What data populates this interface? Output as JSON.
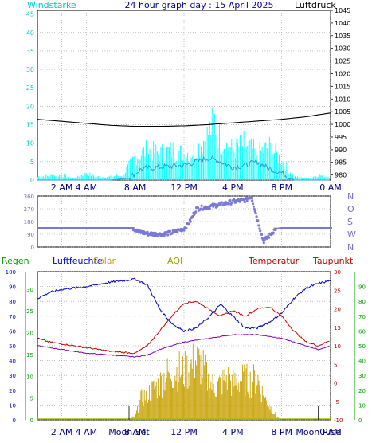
{
  "header": {
    "left_label": "Windstärke",
    "title": "24 hour graph day : 15 April 2025",
    "right_label": "Luftdruck"
  },
  "colors": {
    "wind": "#00c8c8",
    "gust": "#00ffff",
    "pressure": "#000000",
    "direction": "#7a7ad6",
    "rain": "#00a000",
    "humidity": "#0000c8",
    "solar": "#c8a000",
    "temperature": "#c00000",
    "dewpoint": "#8000c0",
    "compass": "#7070c0"
  },
  "chart_data": [
    {
      "id": "wind-pressure",
      "type": "line",
      "x_tick_labels": [
        "2 AM",
        "4 AM",
        "8 AM",
        "12 PM",
        "4 PM",
        "8 PM",
        "0 AM"
      ],
      "x_tick_hours": [
        2,
        4,
        8,
        12,
        16,
        20,
        24
      ],
      "x_range_hours": [
        0,
        24
      ],
      "left_axis": {
        "label": "Windstärke",
        "range": [
          0,
          46
        ],
        "ticks": [
          0,
          5,
          10,
          15,
          20,
          25,
          30,
          35,
          40,
          45
        ]
      },
      "right_axis": {
        "label": "Luftdruck",
        "range": [
          978,
          1045
        ],
        "ticks": [
          980,
          985,
          990,
          995,
          1000,
          1005,
          1010,
          1015,
          1020,
          1025,
          1030,
          1035,
          1040,
          1045
        ]
      },
      "grid": true,
      "pressure": {
        "hours": [
          0,
          2,
          4,
          6,
          8,
          10,
          12,
          14,
          16,
          18,
          20,
          22,
          24
        ],
        "values": [
          1002,
          1001.2,
          1000.4,
          999.6,
          999.2,
          999.2,
          999.4,
          999.9,
          1000.6,
          1001.3,
          1002,
          1003,
          1004.5
        ]
      },
      "wind": {
        "hours": [
          0,
          6,
          7.5,
          8.5,
          10,
          12,
          13,
          14,
          15,
          16,
          17,
          18,
          19,
          20,
          21,
          24
        ],
        "values": [
          0,
          0,
          0.5,
          3,
          3.5,
          4,
          5,
          6,
          5,
          3.5,
          4,
          5,
          3,
          2,
          0,
          0
        ]
      },
      "gust": {
        "hours": [
          0,
          2,
          3,
          4,
          5,
          6,
          7,
          8,
          9,
          10,
          11,
          12,
          13,
          14,
          14.5,
          15,
          16,
          17,
          18,
          19,
          20,
          21,
          22,
          23,
          24
        ],
        "values": [
          1,
          1.5,
          0.5,
          2,
          1,
          1,
          1.5,
          7,
          9,
          8,
          9,
          8,
          9,
          14,
          18,
          12,
          9,
          11,
          8,
          10,
          6,
          1,
          0.5,
          1.5,
          1
        ]
      }
    },
    {
      "id": "wind-direction",
      "type": "scatter",
      "x_range_hours": [
        0,
        24
      ],
      "y_range": [
        0,
        360
      ],
      "y_ticks": [
        0,
        90,
        180,
        270,
        360
      ],
      "y_tick_labels": [
        "N",
        "W",
        "S",
        "O",
        "N"
      ],
      "grid": true,
      "direction": {
        "hours": [
          0,
          6,
          7.8,
          8.2,
          9,
          10,
          11,
          12,
          12.5,
          13,
          14,
          15,
          16,
          17,
          17.5,
          18.5,
          19,
          19.5,
          20,
          24
        ],
        "values": [
          135,
          135,
          135,
          110,
          95,
          90,
          100,
          130,
          180,
          270,
          285,
          300,
          320,
          330,
          360,
          40,
          80,
          130,
          135,
          135
        ]
      }
    },
    {
      "id": "temp-humidity-solar",
      "type": "line",
      "x_tick_labels": [
        "2 AM",
        "4 AM",
        "8 AM",
        "12 PM",
        "4 PM",
        "8 PM",
        "0 AM"
      ],
      "x_tick_hours": [
        2,
        4,
        8,
        12,
        16,
        20,
        24
      ],
      "x_range_hours": [
        0,
        24
      ],
      "legend": [
        "Regen",
        "Luftfeuchte",
        "Solar",
        "AQI",
        "Temperatur",
        "Taupunkt"
      ],
      "annotations": [
        {
          "text": "Moon Set",
          "hour": 7.5
        },
        {
          "text": "Moon Rise",
          "hour": 23
        }
      ],
      "humidity_axis": {
        "range": [
          0,
          100
        ],
        "ticks": [
          0,
          10,
          20,
          30,
          40,
          50,
          60,
          70,
          80,
          90,
          100
        ]
      },
      "rain_axis": {
        "range": [
          0,
          34
        ],
        "ticks": [
          0,
          5,
          10,
          15,
          20,
          25,
          30
        ]
      },
      "temperature_axis": {
        "range": [
          -10,
          30
        ],
        "ticks": [
          -10,
          -5,
          0,
          5,
          10,
          15,
          20,
          25,
          30
        ]
      },
      "percent_axis": {
        "range": [
          0,
          100
        ],
        "ticks": [
          0,
          10,
          20,
          30,
          40,
          50,
          60,
          70,
          80,
          90
        ]
      },
      "grid": true,
      "humidity": {
        "hours": [
          0,
          1,
          2,
          4,
          6,
          8,
          9,
          10,
          11,
          12,
          13,
          14,
          15,
          16,
          17,
          18,
          19,
          20,
          21,
          22,
          23,
          24
        ],
        "values": [
          82,
          86,
          88,
          90,
          93,
          95,
          91,
          75,
          65,
          60,
          62,
          69,
          78,
          70,
          62,
          62,
          66,
          72,
          82,
          89,
          92,
          94
        ]
      },
      "temperature": {
        "hours": [
          0,
          1,
          2,
          4,
          6,
          8,
          9,
          10,
          11,
          12,
          13,
          14,
          15,
          16,
          17,
          18,
          19,
          20,
          21,
          22,
          23,
          24
        ],
        "values": [
          12,
          11,
          10.5,
          9.5,
          8.5,
          8,
          10,
          14,
          18,
          21.5,
          22,
          20,
          18,
          19.5,
          18,
          20,
          20.5,
          18,
          14,
          11,
          10,
          11.5
        ]
      },
      "dewpoint": {
        "hours": [
          0,
          2,
          4,
          6,
          8,
          9,
          10,
          12,
          14,
          16,
          18,
          20,
          22,
          23,
          24
        ],
        "values": [
          10,
          9,
          8,
          7.5,
          7,
          7.5,
          9,
          11,
          12,
          13,
          13,
          12,
          10,
          9,
          10
        ]
      },
      "solar": {
        "hours": [
          0,
          7,
          7.5,
          8,
          8.5,
          9,
          9.5,
          10,
          10.5,
          11,
          11.5,
          12,
          12.5,
          13,
          13.5,
          14,
          14.5,
          15,
          15.5,
          16,
          16.5,
          17,
          17.5,
          18,
          18.5,
          19,
          19.5,
          20,
          24
        ],
        "values": [
          0,
          0,
          1,
          3,
          18,
          22,
          26,
          30,
          38,
          40,
          42,
          40,
          44,
          50,
          45,
          32,
          28,
          30,
          36,
          30,
          33,
          34,
          32,
          36,
          20,
          12,
          4,
          0,
          0
        ]
      },
      "rain": {
        "hours": [
          0,
          24
        ],
        "values": [
          0,
          0
        ]
      }
    }
  ]
}
